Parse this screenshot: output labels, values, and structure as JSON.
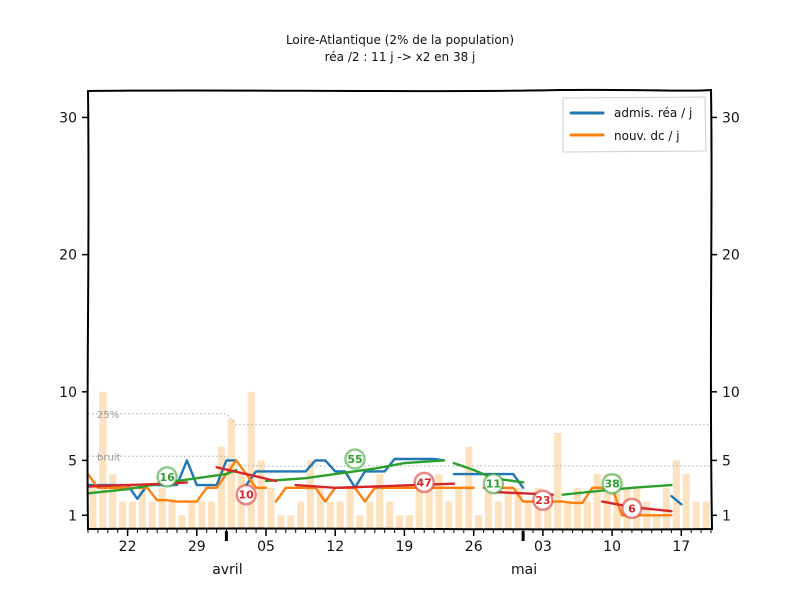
{
  "chart_data": {
    "type": "line",
    "title": "Loire-Atlantique (2% de la population)",
    "subtitle": "réa /2 : 11 j -> x2 en 38 j",
    "xlabel": "",
    "ylabel": "",
    "x_start": "2020-03-18",
    "x_end": "2020-05-20",
    "ylim": [
      0,
      32
    ],
    "y_ticks": [
      "1",
      "5",
      "10",
      "20",
      "30"
    ],
    "x_ticks": [
      {
        "date": "2020-03-22",
        "label": "22"
      },
      {
        "date": "2020-03-29",
        "label": "29"
      },
      {
        "date": "2020-04-05",
        "label": "05"
      },
      {
        "date": "2020-04-12",
        "label": "12"
      },
      {
        "date": "2020-04-19",
        "label": "19"
      },
      {
        "date": "2020-04-26",
        "label": "26"
      },
      {
        "date": "2020-05-03",
        "label": "03"
      },
      {
        "date": "2020-05-10",
        "label": "10"
      },
      {
        "date": "2020-05-17",
        "label": "17"
      }
    ],
    "months": [
      {
        "date": "2020-04-01",
        "label": "avril"
      },
      {
        "date": "2020-05-01",
        "label": "mai"
      }
    ],
    "legend_position": "top-right",
    "grid": false,
    "reference_lines": [
      {
        "name": "25%",
        "color": "#a8a8a8",
        "points": [
          [
            "2020-03-18",
            8.4
          ],
          [
            "2020-04-01",
            8.4
          ],
          [
            "2020-04-02",
            7.6
          ],
          [
            "2020-05-20",
            7.6
          ]
        ]
      },
      {
        "name": "bruit",
        "color": "#a8a8a8",
        "points": [
          [
            "2020-03-18",
            5.3
          ],
          [
            "2020-04-01",
            5.3
          ],
          [
            "2020-04-02",
            4.6
          ],
          [
            "2020-05-20",
            4.6
          ]
        ]
      }
    ],
    "series": [
      {
        "name": "admis. réa / j",
        "color": "#1f77b4",
        "segments": [
          [
            [
              "2020-03-18",
              3.2
            ],
            [
              "2020-03-19",
              3.2
            ],
            [
              "2020-03-20",
              3.2
            ],
            [
              "2020-03-21",
              3.2
            ],
            [
              "2020-03-22",
              3.2
            ],
            [
              "2020-03-23",
              2.2
            ],
            [
              "2020-03-24",
              3.2
            ],
            [
              "2020-03-25",
              3.2
            ],
            [
              "2020-03-26",
              3.2
            ],
            [
              "2020-03-27",
              3.2
            ],
            [
              "2020-03-28",
              5.0
            ],
            [
              "2020-03-29",
              3.2
            ],
            [
              "2020-03-30",
              3.2
            ],
            [
              "2020-03-31",
              3.2
            ],
            [
              "2020-04-01",
              5.0
            ],
            [
              "2020-04-02",
              5.0
            ]
          ],
          [
            [
              "2020-04-03",
              3.2
            ],
            [
              "2020-04-04",
              4.2
            ],
            [
              "2020-04-05",
              4.2
            ],
            [
              "2020-04-06",
              4.2
            ],
            [
              "2020-04-07",
              4.2
            ],
            [
              "2020-04-08",
              4.2
            ],
            [
              "2020-04-09",
              4.2
            ],
            [
              "2020-04-10",
              5.0
            ],
            [
              "2020-04-11",
              5.0
            ],
            [
              "2020-04-12",
              4.2
            ],
            [
              "2020-04-13",
              4.2
            ],
            [
              "2020-04-14",
              3.0
            ],
            [
              "2020-04-15",
              4.2
            ],
            [
              "2020-04-16",
              4.2
            ],
            [
              "2020-04-17",
              4.2
            ],
            [
              "2020-04-18",
              5.1
            ],
            [
              "2020-04-19",
              5.1
            ],
            [
              "2020-04-20",
              5.1
            ],
            [
              "2020-04-21",
              5.1
            ],
            [
              "2020-04-22",
              5.1
            ],
            [
              "2020-04-23",
              5.0
            ]
          ],
          [
            [
              "2020-04-24",
              4.0
            ],
            [
              "2020-04-25",
              4.0
            ],
            [
              "2020-04-26",
              4.0
            ],
            [
              "2020-04-27",
              4.0
            ],
            [
              "2020-04-28",
              4.0
            ],
            [
              "2020-04-29",
              4.0
            ],
            [
              "2020-04-30",
              4.0
            ],
            [
              "2020-05-01",
              3.0
            ]
          ],
          [
            [
              "2020-05-16",
              2.4
            ],
            [
              "2020-05-17",
              1.8
            ]
          ]
        ]
      },
      {
        "name": "nouv. dc / j",
        "color": "#ff7f0e",
        "segments": [
          [
            [
              "2020-03-18",
              4.0
            ],
            [
              "2020-03-19",
              3.0
            ],
            [
              "2020-03-20",
              3.0
            ],
            [
              "2020-03-21",
              3.0
            ],
            [
              "2020-03-22",
              3.0
            ],
            [
              "2020-03-23",
              3.0
            ],
            [
              "2020-03-24",
              3.0
            ],
            [
              "2020-03-25",
              2.1
            ],
            [
              "2020-03-26",
              2.1
            ],
            [
              "2020-03-27",
              2.0
            ],
            [
              "2020-03-28",
              2.0
            ],
            [
              "2020-03-29",
              2.0
            ],
            [
              "2020-03-30",
              3.0
            ],
            [
              "2020-03-31",
              3.0
            ],
            [
              "2020-04-01",
              4.0
            ],
            [
              "2020-04-02",
              5.0
            ],
            [
              "2020-04-03",
              4.0
            ],
            [
              "2020-04-04",
              3.0
            ],
            [
              "2020-04-05",
              3.0
            ]
          ],
          [
            [
              "2020-04-06",
              2.0
            ],
            [
              "2020-04-07",
              3.0
            ],
            [
              "2020-04-08",
              3.0
            ],
            [
              "2020-04-09",
              3.0
            ],
            [
              "2020-04-10",
              3.0
            ],
            [
              "2020-04-11",
              2.0
            ],
            [
              "2020-04-12",
              3.0
            ],
            [
              "2020-04-13",
              3.0
            ],
            [
              "2020-04-14",
              3.0
            ],
            [
              "2020-04-15",
              2.0
            ],
            [
              "2020-04-16",
              3.0
            ],
            [
              "2020-04-17",
              3.0
            ],
            [
              "2020-04-18",
              3.0
            ],
            [
              "2020-04-19",
              3.0
            ],
            [
              "2020-04-20",
              3.0
            ],
            [
              "2020-04-21",
              3.0
            ],
            [
              "2020-04-22",
              3.0
            ],
            [
              "2020-04-23",
              3.0
            ],
            [
              "2020-04-24",
              3.0
            ],
            [
              "2020-04-25",
              3.0
            ],
            [
              "2020-04-26",
              3.0
            ]
          ],
          [
            [
              "2020-04-27",
              3.0
            ],
            [
              "2020-04-28",
              3.0
            ],
            [
              "2020-04-29",
              3.0
            ],
            [
              "2020-04-30",
              3.0
            ],
            [
              "2020-05-01",
              2.0
            ],
            [
              "2020-05-02",
              2.0
            ],
            [
              "2020-05-03",
              2.0
            ],
            [
              "2020-05-04",
              2.0
            ],
            [
              "2020-05-05",
              2.0
            ],
            [
              "2020-05-06",
              1.9
            ],
            [
              "2020-05-07",
              1.9
            ],
            [
              "2020-05-08",
              3.0
            ],
            [
              "2020-05-09",
              3.0
            ],
            [
              "2020-05-10",
              3.0
            ],
            [
              "2020-05-11",
              1.0
            ],
            [
              "2020-05-12",
              1.0
            ],
            [
              "2020-05-13",
              1.0
            ],
            [
              "2020-05-14",
              1.0
            ],
            [
              "2020-05-15",
              1.0
            ],
            [
              "2020-05-16",
              1.0
            ]
          ]
        ]
      },
      {
        "name": "",
        "color": "#2ca02c",
        "segments": [
          [
            [
              "2020-03-18",
              2.6
            ],
            [
              "2020-03-22",
              2.9
            ],
            [
              "2020-03-26",
              3.4
            ],
            [
              "2020-03-29",
              3.7
            ],
            [
              "2020-04-01",
              4.0
            ],
            [
              "2020-04-02",
              4.3
            ]
          ],
          [
            [
              "2020-04-05",
              3.5
            ],
            [
              "2020-04-09",
              3.7
            ],
            [
              "2020-04-12",
              4.0
            ],
            [
              "2020-04-16",
              4.4
            ],
            [
              "2020-04-19",
              4.8
            ],
            [
              "2020-04-23",
              5.0
            ]
          ],
          [
            [
              "2020-04-24",
              4.8
            ],
            [
              "2020-04-26",
              4.3
            ],
            [
              "2020-04-28",
              3.7
            ],
            [
              "2020-05-01",
              3.4
            ]
          ],
          [
            [
              "2020-05-05",
              2.5
            ],
            [
              "2020-05-09",
              2.8
            ],
            [
              "2020-05-12",
              3.0
            ],
            [
              "2020-05-16",
              3.2
            ]
          ]
        ]
      },
      {
        "name": "",
        "color": "#d62728",
        "segments": [
          [
            [
              "2020-03-18",
              3.1
            ],
            [
              "2020-03-22",
              3.2
            ],
            [
              "2020-03-26",
              3.3
            ],
            [
              "2020-03-28",
              3.4
            ]
          ],
          [
            [
              "2020-03-31",
              4.5
            ],
            [
              "2020-04-03",
              4.0
            ],
            [
              "2020-04-06",
              3.5
            ]
          ],
          [
            [
              "2020-04-08",
              3.2
            ],
            [
              "2020-04-12",
              3.0
            ],
            [
              "2020-04-16",
              3.1
            ],
            [
              "2020-04-20",
              3.2
            ],
            [
              "2020-04-24",
              3.3
            ]
          ],
          [
            [
              "2020-04-28",
              2.7
            ],
            [
              "2020-05-01",
              2.6
            ],
            [
              "2020-05-04",
              2.5
            ]
          ],
          [
            [
              "2020-05-09",
              2.0
            ],
            [
              "2020-05-12",
              1.6
            ],
            [
              "2020-05-16",
              1.3
            ]
          ]
        ]
      }
    ],
    "badges": [
      {
        "date": "2020-03-26",
        "value": 3.8,
        "label": "16",
        "color": "#2ca02c"
      },
      {
        "date": "2020-04-03",
        "value": 2.5,
        "label": "10",
        "color": "#d62728"
      },
      {
        "date": "2020-04-14",
        "value": 5.1,
        "label": "55",
        "color": "#2ca02c"
      },
      {
        "date": "2020-04-21",
        "value": 3.4,
        "label": "47",
        "color": "#d62728"
      },
      {
        "date": "2020-04-28",
        "value": 3.3,
        "label": "11",
        "color": "#2ca02c"
      },
      {
        "date": "2020-05-03",
        "value": 2.1,
        "label": "23",
        "color": "#d62728"
      },
      {
        "date": "2020-05-10",
        "value": 3.3,
        "label": "38",
        "color": "#2ca02c"
      },
      {
        "date": "2020-05-12",
        "value": 1.5,
        "label": "6",
        "color": "#d62728"
      }
    ],
    "bars": {
      "color": "#fde2bf",
      "values": [
        3,
        10,
        4,
        2,
        2,
        3,
        2,
        3,
        2,
        1,
        2,
        2,
        2,
        6,
        8,
        4,
        10,
        5,
        3,
        1,
        1,
        2,
        5,
        3,
        2,
        2,
        3,
        1,
        2,
        4,
        2,
        1,
        1,
        3,
        3,
        4,
        2,
        3,
        6,
        1,
        3,
        2,
        3,
        3,
        2,
        3,
        2,
        7,
        2,
        3,
        2,
        4,
        4,
        4,
        3,
        3,
        2,
        1,
        3,
        5,
        4,
        2,
        2,
        3,
        2,
        1,
        3,
        4,
        4,
        2,
        4,
        3,
        2,
        1
      ]
    }
  }
}
